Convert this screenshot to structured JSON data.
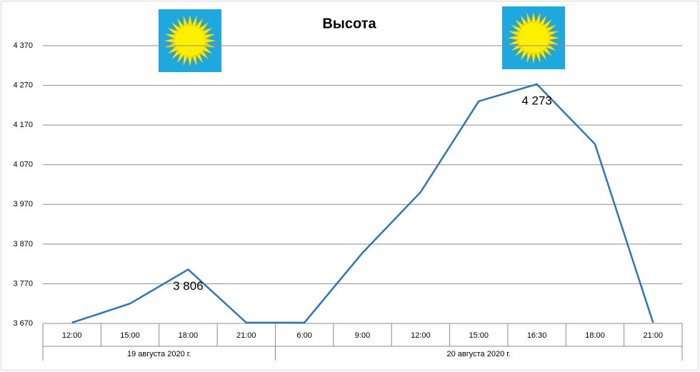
{
  "chart_data": {
    "type": "line",
    "title": "Высота",
    "categories": [
      "12:00",
      "15:00",
      "18:00",
      "21:00",
      "6:00",
      "9:00",
      "12:00",
      "15:00",
      "16:30",
      "18:00",
      "21:00"
    ],
    "category_groups": [
      {
        "name": "19 августа 2020 г.",
        "count": 4
      },
      {
        "name": "20 августа 2020 г.",
        "count": 7
      }
    ],
    "series": [
      {
        "name": "Высота",
        "color": "#2e75b6",
        "values": [
          3672,
          3720,
          3806,
          3672,
          3672,
          3848,
          4001,
          4230,
          4273,
          4122,
          3672
        ],
        "value_labels": [
          null,
          null,
          "3 806",
          null,
          null,
          null,
          null,
          null,
          "4 273",
          null,
          null
        ]
      }
    ],
    "ylim": [
      3670,
      4370
    ],
    "yticks": [
      {
        "value": 3670,
        "label": "3 670"
      },
      {
        "value": 3770,
        "label": "3 770"
      },
      {
        "value": 3870,
        "label": "3 870"
      },
      {
        "value": 3970,
        "label": "3 970"
      },
      {
        "value": 4070,
        "label": "4 070"
      },
      {
        "value": 4170,
        "label": "4 170"
      },
      {
        "value": 4270,
        "label": "4 270"
      },
      {
        "value": 4370,
        "label": "4 370"
      }
    ],
    "grid": true
  }
}
